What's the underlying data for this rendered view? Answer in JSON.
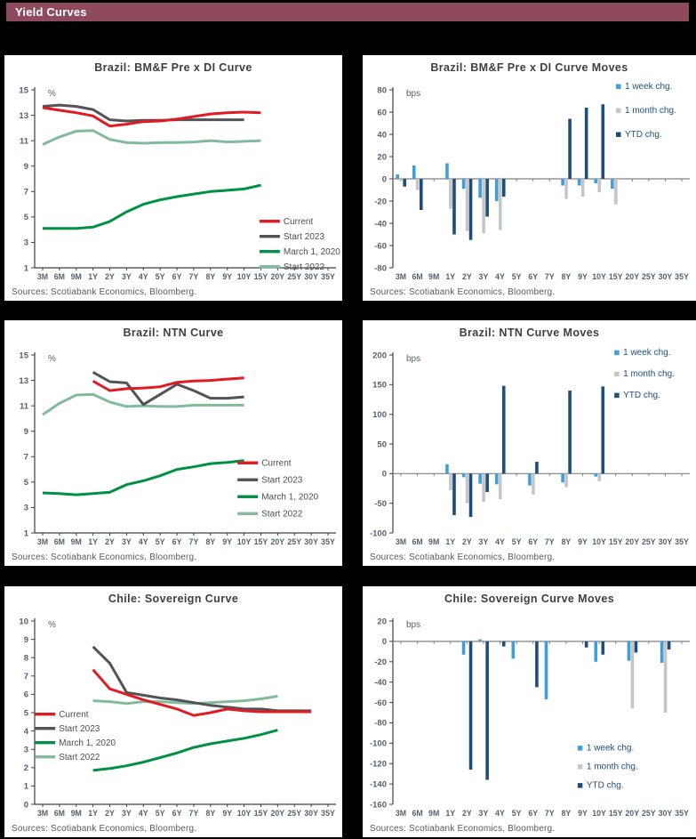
{
  "header": {
    "title": "Yield Curves",
    "bg_color": "#8e4b5e"
  },
  "labels": {
    "sources": "Sources: Scotiabank Economics, Bloomberg."
  },
  "style_colors": {
    "axis": "#404040",
    "tick_label": "#53626f",
    "zero_line": "#808080",
    "line_legend_text": "#4d4e50",
    "bar_legend_text": "#1f4e79",
    "red": "#e11b22",
    "dark_gray": "#525356",
    "green": "#009145",
    "sage": "#82bb9b",
    "light_blue": "#3fa0d9",
    "bar_gray": "#c5c6c8",
    "navy": "#1f4e79"
  },
  "chart_data": [
    {
      "type": "line",
      "title": "Brazil: BM&F Pre x DI Curve",
      "unit": "%",
      "ylim": [
        1,
        15
      ],
      "ytick": 2,
      "categories": [
        "3M",
        "6M",
        "9M",
        "1Y",
        "2Y",
        "3Y",
        "4Y",
        "5Y",
        "6Y",
        "7Y",
        "8Y",
        "9Y",
        "10Y",
        "15Y",
        "20Y",
        "25Y",
        "30Y",
        "35Y"
      ],
      "legend_position": "right-middle",
      "legend_anchor": [
        0.755,
        0.7
      ],
      "legend_gap": 17,
      "series": [
        {
          "name": "Start 2022",
          "color": "#82bb9b",
          "values": [
            10.7,
            11.3,
            11.75,
            11.8,
            11.1,
            10.85,
            10.8,
            10.85,
            10.85,
            10.9,
            11.0,
            10.9,
            10.95,
            11.0,
            null,
            null,
            null,
            null
          ]
        },
        {
          "name": "March 1, 2020",
          "color": "#009145",
          "values": [
            4.1,
            4.1,
            4.1,
            4.2,
            4.65,
            5.4,
            6.0,
            6.35,
            6.6,
            6.8,
            7.0,
            7.1,
            7.2,
            7.5,
            null,
            null,
            null,
            null
          ]
        },
        {
          "name": "Start 2023",
          "color": "#525356",
          "values": [
            13.7,
            13.8,
            13.7,
            13.45,
            12.65,
            12.55,
            12.6,
            12.6,
            12.65,
            12.65,
            12.65,
            12.65,
            12.65,
            null,
            null,
            null,
            null,
            null
          ]
        },
        {
          "name": "Current",
          "color": "#e11b22",
          "values": [
            13.6,
            13.4,
            13.2,
            12.95,
            12.15,
            12.3,
            12.5,
            12.55,
            12.7,
            12.9,
            13.1,
            13.2,
            13.25,
            13.2,
            null,
            null,
            null,
            null
          ]
        }
      ],
      "legend_order": [
        "Current",
        "Start 2023",
        "March 1, 2020",
        "Start 2022"
      ]
    },
    {
      "type": "bar",
      "title": "Brazil: BM&F Pre x DI Curve Moves",
      "unit": "bps",
      "ylim": [
        -80,
        80
      ],
      "ytick": 20,
      "categories": [
        "3M",
        "6M",
        "9M",
        "1Y",
        "2Y",
        "3Y",
        "4Y",
        "5Y",
        "6Y",
        "7Y",
        "8Y",
        "9Y",
        "10Y",
        "15Y",
        "20Y",
        "25Y",
        "30Y",
        "35Y"
      ],
      "legend_position": "top-right",
      "legend_anchor": [
        0.76,
        0.05
      ],
      "legend_gap": 27,
      "series": [
        {
          "name": "1 week chg.",
          "color": "#3fa0d9",
          "values": [
            4,
            12,
            null,
            14,
            -9,
            -17,
            -20,
            null,
            null,
            null,
            -6,
            -6,
            -4,
            -9,
            null,
            null,
            null,
            null
          ]
        },
        {
          "name": "1 month chg.",
          "color": "#c5c6c8",
          "values": [
            -2,
            -10,
            null,
            -27,
            -47,
            -49,
            -46,
            null,
            null,
            null,
            -18,
            -16,
            -12,
            -23,
            null,
            null,
            null,
            null
          ]
        },
        {
          "name": "YTD chg.",
          "color": "#1f4e79",
          "values": [
            -7,
            -28,
            null,
            -50,
            -55,
            -34,
            -16,
            null,
            null,
            null,
            54,
            64,
            67,
            null,
            null,
            null,
            null,
            null
          ]
        }
      ],
      "legend_order": [
        "1 week chg.",
        "1 month chg.",
        "YTD chg."
      ]
    },
    {
      "type": "line",
      "title": "Brazil: NTN Curve",
      "unit": "%",
      "ylim": [
        1,
        15
      ],
      "ytick": 2,
      "categories": [
        "3M",
        "6M",
        "9M",
        "1Y",
        "2Y",
        "3Y",
        "4Y",
        "5Y",
        "6Y",
        "7Y",
        "8Y",
        "9Y",
        "10Y",
        "15Y",
        "20Y",
        "25Y",
        "30Y",
        "35Y"
      ],
      "legend_position": "right-lower",
      "legend_anchor": [
        0.69,
        0.585
      ],
      "legend_gap": 19,
      "series": [
        {
          "name": "Start 2022",
          "color": "#82bb9b",
          "values": [
            10.3,
            11.2,
            11.85,
            11.9,
            11.3,
            10.95,
            11.0,
            10.95,
            10.95,
            11.05,
            11.05,
            11.05,
            11.05,
            null,
            null,
            null,
            null,
            null
          ]
        },
        {
          "name": "March 1, 2020",
          "color": "#009145",
          "values": [
            4.15,
            4.1,
            4.0,
            4.1,
            4.2,
            4.8,
            5.1,
            5.5,
            6.0,
            6.2,
            6.45,
            6.55,
            6.7,
            null,
            null,
            null,
            null,
            null
          ]
        },
        {
          "name": "Start 2023",
          "color": "#525356",
          "values": [
            null,
            null,
            null,
            13.65,
            12.9,
            12.8,
            11.1,
            11.9,
            12.7,
            12.2,
            11.6,
            11.6,
            11.7,
            null,
            null,
            null,
            null,
            null
          ]
        },
        {
          "name": "Current",
          "color": "#e11b22",
          "values": [
            null,
            null,
            null,
            12.95,
            12.2,
            12.35,
            12.4,
            12.5,
            12.85,
            12.95,
            13.0,
            13.1,
            13.2,
            null,
            null,
            null,
            null,
            null
          ]
        }
      ],
      "legend_order": [
        "Current",
        "Start 2023",
        "March 1, 2020",
        "Start 2022"
      ]
    },
    {
      "type": "bar",
      "title": "Brazil: NTN Curve Moves",
      "unit": "bps",
      "ylim": [
        -100,
        200
      ],
      "ytick": 50,
      "categories": [
        "3M",
        "6M",
        "9M",
        "1Y",
        "2Y",
        "3Y",
        "4Y",
        "5Y",
        "6Y",
        "7Y",
        "8Y",
        "9Y",
        "10Y",
        "15Y",
        "20Y",
        "25Y",
        "30Y",
        "35Y"
      ],
      "legend_position": "top-right",
      "legend_anchor": [
        0.755,
        0.055
      ],
      "legend_gap": 24,
      "series": [
        {
          "name": "1 week chg.",
          "color": "#3fa0d9",
          "values": [
            null,
            null,
            null,
            16,
            -6,
            -17,
            -18,
            null,
            -20,
            null,
            -15,
            null,
            -5,
            null,
            null,
            null,
            null,
            null
          ]
        },
        {
          "name": "1 month chg.",
          "color": "#c5c6c8",
          "values": [
            null,
            null,
            null,
            -28,
            -50,
            -48,
            -43,
            null,
            -35,
            null,
            -23,
            null,
            -13,
            null,
            null,
            null,
            null,
            null
          ]
        },
        {
          "name": "YTD chg.",
          "color": "#1f4e79",
          "values": [
            null,
            null,
            null,
            -70,
            -73,
            -31,
            148,
            null,
            20,
            null,
            140,
            null,
            147,
            null,
            null,
            null,
            null,
            null
          ]
        }
      ],
      "legend_order": [
        "1 week chg.",
        "1 month chg.",
        "YTD chg."
      ]
    },
    {
      "type": "line",
      "title": "Chile: Sovereign Curve",
      "unit": "%",
      "ylim": [
        0,
        10
      ],
      "ytick": 1,
      "categories": [
        "3M",
        "6M",
        "9M",
        "1Y",
        "2Y",
        "3Y",
        "4Y",
        "5Y",
        "6Y",
        "7Y",
        "8Y",
        "9Y",
        "10Y",
        "15Y",
        "20Y",
        "25Y",
        "30Y",
        "35Y"
      ],
      "legend_position": "left-middle",
      "legend_anchor": [
        0.09,
        0.5
      ],
      "legend_gap": 16,
      "series": [
        {
          "name": "Start 2022",
          "color": "#82bb9b",
          "values": [
            null,
            null,
            null,
            5.65,
            5.6,
            5.5,
            5.6,
            5.6,
            5.55,
            5.5,
            5.55,
            5.6,
            5.65,
            5.75,
            5.9,
            null,
            null,
            null
          ]
        },
        {
          "name": "March 1, 2020",
          "color": "#009145",
          "values": [
            null,
            null,
            null,
            1.85,
            1.95,
            2.1,
            2.3,
            2.55,
            2.8,
            3.1,
            3.3,
            3.45,
            3.6,
            3.8,
            4.05,
            null,
            null,
            null
          ]
        },
        {
          "name": "Start 2023",
          "color": "#525356",
          "values": [
            null,
            null,
            null,
            8.6,
            7.7,
            6.1,
            5.95,
            5.8,
            5.7,
            5.55,
            5.4,
            5.3,
            5.2,
            5.2,
            5.1,
            5.1,
            5.1,
            null
          ]
        },
        {
          "name": "Current",
          "color": "#e11b22",
          "values": [
            null,
            null,
            null,
            7.35,
            6.3,
            6.0,
            5.7,
            5.45,
            5.2,
            4.85,
            5.0,
            5.2,
            5.1,
            5.05,
            5.05,
            5.05,
            5.05,
            null
          ]
        }
      ],
      "legend_order": [
        "Current",
        "Start 2023",
        "March 1, 2020",
        "Start 2022"
      ]
    },
    {
      "type": "bar",
      "title": "Chile: Sovereign Curve Moves",
      "unit": "bps",
      "ylim": [
        -160,
        20
      ],
      "ytick": 20,
      "categories": [
        "3M",
        "6M",
        "9M",
        "1Y",
        "2Y",
        "3Y",
        "4Y",
        "5Y",
        "6Y",
        "7Y",
        "8Y",
        "9Y",
        "10Y",
        "15Y",
        "20Y",
        "25Y",
        "30Y",
        "35Y"
      ],
      "legend_position": "bottom-right",
      "legend_anchor": [
        0.645,
        0.67
      ],
      "legend_gap": 21,
      "series": [
        {
          "name": "1 week chg.",
          "color": "#3fa0d9",
          "values": [
            null,
            null,
            null,
            null,
            -13,
            2,
            null,
            -17,
            null,
            -57,
            null,
            null,
            -20,
            null,
            -19,
            null,
            -21,
            null
          ]
        },
        {
          "name": "1 month chg.",
          "color": "#c5c6c8",
          "values": [
            null,
            null,
            null,
            null,
            null,
            null,
            null,
            null,
            null,
            null,
            null,
            null,
            null,
            null,
            -66,
            null,
            -70,
            null
          ]
        },
        {
          "name": "YTD chg.",
          "color": "#1f4e79",
          "values": [
            null,
            null,
            null,
            null,
            -126,
            -136,
            -5,
            null,
            -45,
            null,
            null,
            -6,
            -13,
            null,
            -11,
            null,
            -8,
            null
          ]
        }
      ],
      "legend_order": [
        "1 week chg.",
        "1 month chg.",
        "YTD chg."
      ]
    }
  ]
}
